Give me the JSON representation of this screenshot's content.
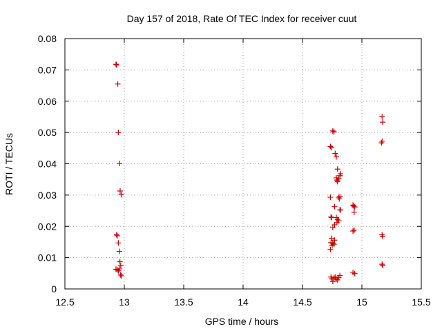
{
  "chart_data": {
    "type": "scatter",
    "title": "Day 157 of 2018, Rate Of TEC Index for receiver cuut",
    "xlabel": "GPS time / hours",
    "ylabel": "ROTI / TECUs",
    "xlim": [
      12.5,
      15.5
    ],
    "ylim": [
      0,
      0.08
    ],
    "xticks": [
      12.5,
      13,
      13.5,
      14,
      14.5,
      15,
      15.5
    ],
    "xtick_labels": [
      "12.5",
      "13",
      "13.5",
      "14",
      "14.5",
      "15",
      "15.5"
    ],
    "yticks": [
      0,
      0.01,
      0.02,
      0.03,
      0.04,
      0.05,
      0.06,
      0.07,
      0.08
    ],
    "ytick_labels": [
      "0",
      "0.01",
      "0.02",
      "0.03",
      "0.04",
      "0.05",
      "0.06",
      "0.07",
      "0.08"
    ],
    "grid": true,
    "marker": "+",
    "color": "#cc0000",
    "points": [
      [
        12.93,
        0.0718
      ],
      [
        12.935,
        0.0716
      ],
      [
        12.945,
        0.0655
      ],
      [
        12.95,
        0.05
      ],
      [
        12.96,
        0.0401
      ],
      [
        12.965,
        0.0313
      ],
      [
        12.975,
        0.0301
      ],
      [
        12.935,
        0.0173
      ],
      [
        12.94,
        0.017
      ],
      [
        12.95,
        0.0147
      ],
      [
        12.958,
        0.012
      ],
      [
        12.963,
        0.0087
      ],
      [
        12.97,
        0.0075
      ],
      [
        12.93,
        0.0063
      ],
      [
        12.94,
        0.0061
      ],
      [
        12.95,
        0.0058
      ],
      [
        12.96,
        0.0064
      ],
      [
        12.968,
        0.0045
      ],
      [
        12.975,
        0.0042
      ],
      [
        14.735,
        0.0455
      ],
      [
        14.745,
        0.0452
      ],
      [
        14.755,
        0.0505
      ],
      [
        14.765,
        0.0502
      ],
      [
        14.775,
        0.0433
      ],
      [
        14.785,
        0.0422
      ],
      [
        14.795,
        0.0383
      ],
      [
        14.82,
        0.0368
      ],
      [
        14.815,
        0.0362
      ],
      [
        14.785,
        0.0355
      ],
      [
        14.79,
        0.0348
      ],
      [
        14.795,
        0.0343
      ],
      [
        14.805,
        0.0352
      ],
      [
        14.735,
        0.0293
      ],
      [
        14.805,
        0.0293
      ],
      [
        14.81,
        0.0288
      ],
      [
        14.815,
        0.0295
      ],
      [
        14.77,
        0.0263
      ],
      [
        14.815,
        0.0253
      ],
      [
        14.82,
        0.0252
      ],
      [
        14.74,
        0.023
      ],
      [
        14.745,
        0.0228
      ],
      [
        14.785,
        0.0228
      ],
      [
        14.795,
        0.0222
      ],
      [
        14.805,
        0.0218
      ],
      [
        14.79,
        0.0212
      ],
      [
        14.77,
        0.0205
      ],
      [
        14.755,
        0.0196
      ],
      [
        14.745,
        0.0162
      ],
      [
        14.77,
        0.0156
      ],
      [
        14.74,
        0.0148
      ],
      [
        14.755,
        0.0146
      ],
      [
        14.765,
        0.0143
      ],
      [
        14.75,
        0.0138
      ],
      [
        14.735,
        0.0126
      ],
      [
        14.74,
        0.0038
      ],
      [
        14.745,
        0.0032
      ],
      [
        14.755,
        0.0024
      ],
      [
        14.765,
        0.0035
      ],
      [
        14.775,
        0.0038
      ],
      [
        14.785,
        0.0031
      ],
      [
        14.795,
        0.0029
      ],
      [
        14.805,
        0.0036
      ],
      [
        14.815,
        0.0043
      ],
      [
        14.925,
        0.0268
      ],
      [
        14.93,
        0.0265
      ],
      [
        14.935,
        0.0245
      ],
      [
        14.94,
        0.0262
      ],
      [
        14.925,
        0.0185
      ],
      [
        14.935,
        0.0188
      ],
      [
        14.925,
        0.0053
      ],
      [
        14.94,
        0.0049
      ],
      [
        15.17,
        0.0551
      ],
      [
        15.175,
        0.0533
      ],
      [
        15.17,
        0.0472
      ],
      [
        15.165,
        0.0467
      ],
      [
        15.17,
        0.0173
      ],
      [
        15.175,
        0.0168
      ],
      [
        15.17,
        0.0079
      ],
      [
        15.175,
        0.0075
      ]
    ]
  }
}
